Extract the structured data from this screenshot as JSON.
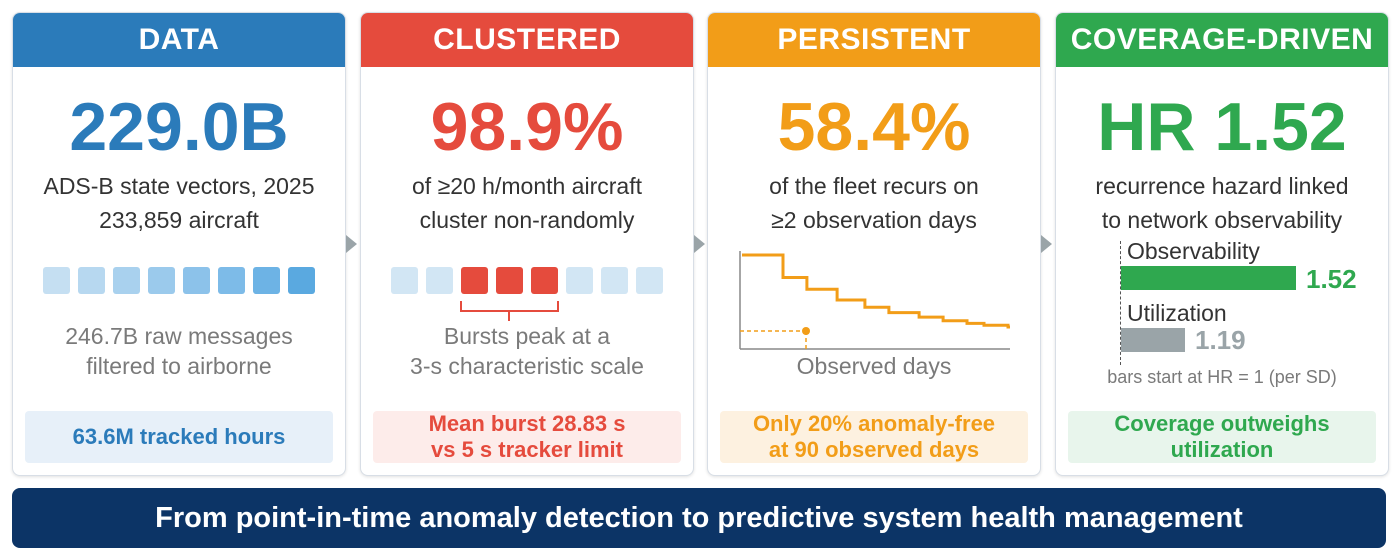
{
  "colors": {
    "data": "#2b7bba",
    "clustered": "#e54b3d",
    "persistent": "#f29d18",
    "coverage": "#2fa84f",
    "banner": "#0c3466",
    "gray_bar": "#9aa4a8"
  },
  "cards": {
    "data": {
      "title": "DATA",
      "big": "229.0B",
      "sub1": "ADS-B state vectors, 2025",
      "sub2": "233,859 aircraft",
      "note1": "246.7B raw messages",
      "note2": "filtered to airborne",
      "foot1": "63.6M tracked hours"
    },
    "clustered": {
      "title": "CLUSTERED",
      "big": "98.9%",
      "sub1": "of ≥20 h/month aircraft",
      "sub2": "cluster non-randomly",
      "note1": "Bursts peak at a",
      "note2": "3-s characteristic scale",
      "foot1": "Mean burst 28.83 s",
      "foot2": "vs 5 s tracker limit"
    },
    "persistent": {
      "title": "PERSISTENT",
      "big": "58.4%",
      "sub1": "of the fleet recurs on",
      "sub2": "≥2 observation days",
      "xlabel": "Observed days",
      "foot1": "Only 20% anomaly-free",
      "foot2": "at 90 observed days"
    },
    "coverage": {
      "title": "COVERAGE-DRIVEN",
      "big": "HR 1.52",
      "sub1": "recurrence hazard linked",
      "sub2": "to network observability",
      "note": "bars start at HR = 1 (per SD)",
      "foot1": "Coverage outweighs",
      "foot2": "utilization"
    }
  },
  "chart_data": [
    {
      "type": "bar",
      "categories": [
        "Observability",
        "Utilization"
      ],
      "values": [
        1.52,
        1.19
      ],
      "value_labels": [
        "1.52",
        "1.19"
      ],
      "baseline": 1,
      "xlim": [
        1,
        1.55
      ],
      "colors": [
        "#2fa84f",
        "#9aa4a8"
      ]
    },
    {
      "type": "line",
      "xlabel": "Observed days",
      "x": [
        1,
        2,
        3,
        5,
        8,
        12,
        20,
        30,
        45,
        60,
        90
      ],
      "y": [
        1.0,
        0.75,
        0.62,
        0.5,
        0.42,
        0.36,
        0.31,
        0.27,
        0.24,
        0.22,
        0.2
      ]
    }
  ],
  "banner": "From point-in-time anomaly detection to predictive system health management"
}
